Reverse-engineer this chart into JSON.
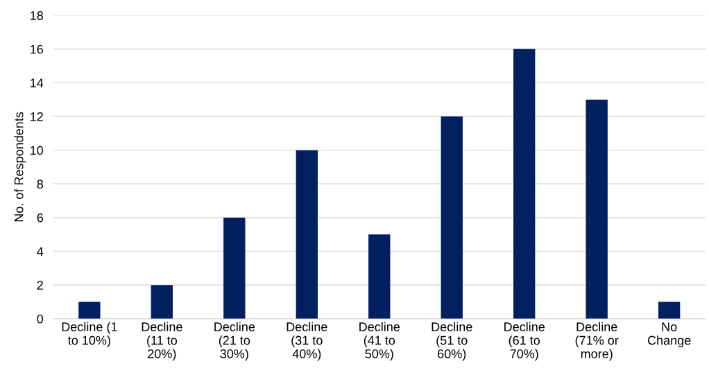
{
  "chart_data": {
    "type": "bar",
    "ylabel": "No. of Respondents",
    "categories": [
      "Decline (1\nto 10%)",
      "Decline\n(11 to\n20%)",
      "Decline\n(21 to\n30%)",
      "Decline\n(31 to\n40%)",
      "Decline\n(41 to\n50%)",
      "Decline\n(51 to\n60%)",
      "Decline\n(61 to\n70%)",
      "Decline\n(71% or\nmore)",
      "No\nChange"
    ],
    "values": [
      1,
      2,
      6,
      10,
      5,
      12,
      16,
      13,
      1
    ],
    "color": "#002060",
    "ylim": [
      0,
      18
    ],
    "yticks": [
      0,
      2,
      4,
      6,
      8,
      10,
      12,
      14,
      16,
      18
    ],
    "grid": "y"
  }
}
